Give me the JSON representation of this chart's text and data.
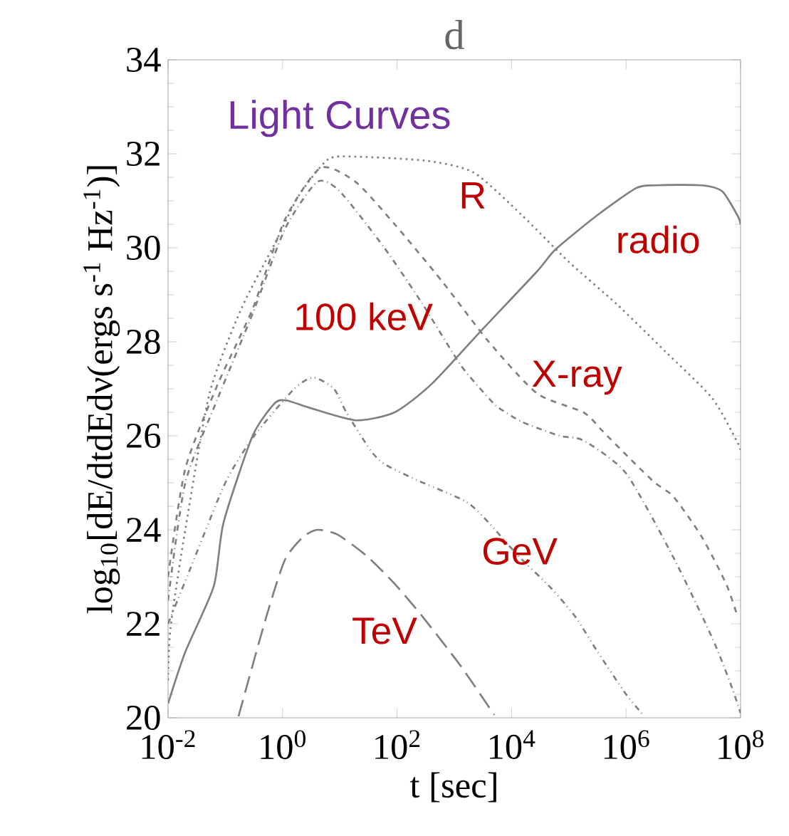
{
  "chart_data": {
    "type": "line",
    "title": "d",
    "subtitle": "Light Curves",
    "xlabel": "t [sec]",
    "ylabel": "log$_{10}$[dE/dtdEdν(ergs s$^{-1}$ Hz$^{-1}$)]",
    "log": "x",
    "grid": false,
    "marker": "none",
    "xlim": [
      0.01,
      100000000
    ],
    "ylim": [
      20,
      34
    ],
    "xticks": [
      {
        "value": 0.01,
        "label": "10$^{-2}$"
      },
      {
        "value": 1,
        "label": "10$^{0}$"
      },
      {
        "value": 100,
        "label": "10$^{2}$"
      },
      {
        "value": 10000,
        "label": "10$^{4}$"
      },
      {
        "value": 1000000,
        "label": "10$^{6}$"
      },
      {
        "value": 100000000,
        "label": "10$^{8}$"
      }
    ],
    "yticks": [
      20,
      22,
      24,
      26,
      28,
      30,
      32,
      34
    ],
    "series": [
      {
        "color": "#808080",
        "line_style": "solid",
        "x": [
          0.01,
          0.02,
          0.063,
          0.093,
          0.3,
          0.74,
          1.2,
          2.9,
          19,
          91,
          400,
          3300,
          28000,
          59000,
          320000,
          1500000,
          3200000,
          21000000,
          48000000,
          90000000,
          100000000
        ],
        "values": [
          20.3,
          21.4,
          22.8,
          24.15,
          26.0,
          26.7,
          26.75,
          26.6,
          26.33,
          26.5,
          27.1,
          28.3,
          29.5,
          29.97,
          30.7,
          31.27,
          31.33,
          31.33,
          31.2,
          30.67,
          30.5
        ]
      },
      {
        "color": "#808080",
        "line_style": "dotted",
        "x": [
          0.01,
          0.011,
          0.02,
          0.053,
          0.19,
          0.74,
          1.9,
          6.2,
          19,
          340,
          2200,
          15000,
          100000,
          690000,
          4800000,
          32000000,
          85000000,
          100000000
        ],
        "values": [
          20.8,
          21.9,
          24.0,
          26.9,
          28.7,
          30.1,
          31.1,
          31.88,
          31.94,
          31.85,
          31.6,
          30.7,
          29.7,
          28.8,
          27.8,
          26.8,
          25.9,
          25.7
        ]
      },
      {
        "color": "#808080",
        "line_style": "dashed",
        "x": [
          0.01,
          0.02,
          0.074,
          0.3,
          1.1,
          4.6,
          19,
          91,
          600,
          4000,
          28000,
          180000,
          390000,
          1200000,
          3200000,
          6800000,
          21000000,
          56000000,
          89000000
        ],
        "values": [
          23.0,
          25.3,
          27.1,
          28.7,
          30.6,
          31.7,
          31.4,
          30.5,
          29.3,
          28.0,
          26.9,
          26.5,
          26.1,
          25.5,
          25.0,
          24.7,
          23.85,
          22.85,
          22.15
        ]
      },
      {
        "color": "#808080",
        "line_style": "dashdotted",
        "x": [
          0.01,
          0.02,
          0.074,
          0.3,
          1.1,
          4.0,
          10,
          60,
          280,
          1300,
          4000,
          5900,
          15000,
          69000,
          180000,
          1000000,
          6800000,
          32000000,
          68000000,
          100000000
        ],
        "values": [
          22.5,
          25.0,
          26.8,
          28.6,
          30.4,
          31.4,
          31.2,
          30.0,
          28.8,
          27.5,
          26.8,
          26.6,
          26.3,
          26.0,
          25.9,
          25.2,
          23.4,
          21.7,
          20.7,
          20.1
        ]
      },
      {
        "color": "#808080",
        "line_style": "dashdotdotted",
        "x": [
          0.01,
          0.025,
          0.1,
          0.32,
          1.6,
          3.5,
          7.9,
          13,
          34,
          60,
          220,
          1600,
          4000,
          13000,
          49000,
          130000,
          320000,
          1000000,
          2100000
        ],
        "values": [
          22.0,
          23.2,
          25.0,
          26.0,
          27.0,
          27.24,
          27.0,
          26.5,
          25.7,
          25.4,
          25.06,
          24.6,
          24.15,
          23.45,
          22.76,
          22.15,
          21.4,
          20.5,
          20.03
        ]
      },
      {
        "color": "#808080",
        "line_style": "loosely dashed",
        "x": [
          0.17,
          0.52,
          1.1,
          2.3,
          4.1,
          9.1,
          29,
          91,
          280,
          1300,
          5000
        ],
        "values": [
          20.03,
          22.15,
          23.36,
          23.85,
          24.0,
          23.9,
          23.45,
          22.85,
          22.15,
          21.1,
          20.06
        ]
      }
    ],
    "annotations": [
      "radio",
      "R",
      "100 keV",
      "X-ray",
      "GeV",
      "TeV"
    ]
  }
}
